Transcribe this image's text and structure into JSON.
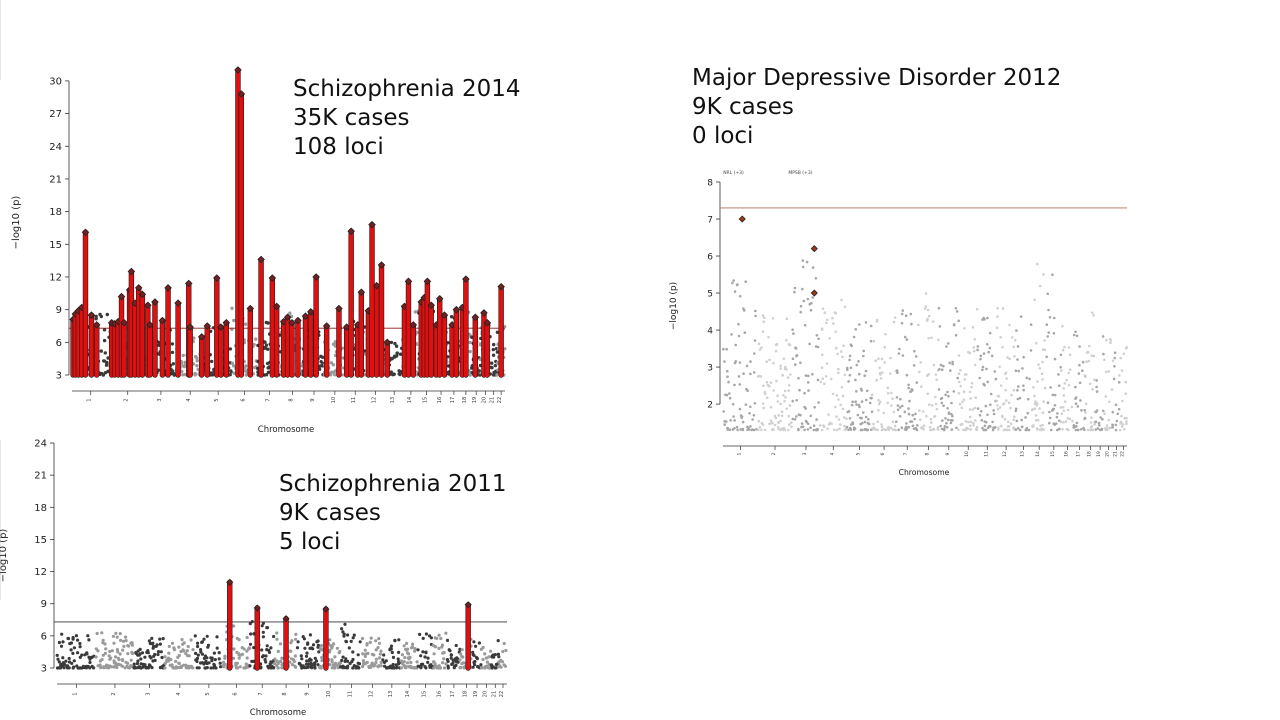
{
  "slide": {
    "captions": {
      "scz2014": [
        "Schizophrenia 2014",
        "35K cases",
        "108 loci"
      ],
      "mdd2012": [
        "Major Depressive Disorder 2012",
        "9K cases",
        "0 loci"
      ],
      "scz2011": [
        "Schizophrenia 2011",
        "9K cases",
        "5 loci"
      ]
    }
  },
  "chart_data": [
    {
      "id": "scz2014",
      "type": "scatter",
      "subtype": "manhattan",
      "title": "",
      "xlabel": "Chromosome",
      "ylabel": "−log10 (p)",
      "ylim": [
        3,
        31
      ],
      "yticks": [
        3,
        6,
        9,
        12,
        15,
        18,
        21,
        24,
        27,
        30
      ],
      "threshold": 7.3,
      "threshold_color": "#8b1a1a",
      "colors": {
        "dark": "#3a3a3a",
        "light": "#9a9a9a",
        "hit": "#e01010",
        "hit_marker": "#222222"
      },
      "grid": false,
      "chromosomes": [
        "1",
        "2",
        "3",
        "4",
        "5",
        "6",
        "7",
        "8",
        "9",
        "10",
        "11",
        "12",
        "13",
        "14",
        "15",
        "16",
        "17",
        "18",
        "19",
        "20",
        "21",
        "22"
      ],
      "chromosome_lengths": [
        249,
        243,
        198,
        191,
        181,
        171,
        159,
        146,
        141,
        136,
        135,
        134,
        115,
        107,
        102,
        90,
        81,
        78,
        59,
        63,
        48,
        51
      ],
      "chromosome_max": [
        8.6,
        7.5,
        7.4,
        6.5,
        7.4,
        9.2,
        9.0,
        8.7,
        7.4,
        7.4,
        8.0,
        8.5,
        6.0,
        9.3,
        9.6,
        8.4,
        8.6,
        9.2,
        6.5,
        8.0,
        7.1,
        7.5
      ],
      "hits": [
        {
          "chr": "1",
          "pos": 0.03,
          "y": 8.1
        },
        {
          "chr": "1",
          "pos": 0.09,
          "y": 8.6
        },
        {
          "chr": "1",
          "pos": 0.17,
          "y": 8.9
        },
        {
          "chr": "1",
          "pos": 0.26,
          "y": 9.2
        },
        {
          "chr": "1",
          "pos": 0.36,
          "y": 16.1
        },
        {
          "chr": "1",
          "pos": 0.52,
          "y": 8.5
        },
        {
          "chr": "1",
          "pos": 0.66,
          "y": 7.6
        },
        {
          "chr": "2",
          "pos": 0.06,
          "y": 7.8
        },
        {
          "chr": "2",
          "pos": 0.14,
          "y": 7.7
        },
        {
          "chr": "2",
          "pos": 0.24,
          "y": 7.9
        },
        {
          "chr": "2",
          "pos": 0.33,
          "y": 10.2
        },
        {
          "chr": "2",
          "pos": 0.4,
          "y": 7.8
        },
        {
          "chr": "2",
          "pos": 0.55,
          "y": 10.8
        },
        {
          "chr": "2",
          "pos": 0.6,
          "y": 12.5
        },
        {
          "chr": "2",
          "pos": 0.7,
          "y": 9.6
        },
        {
          "chr": "2",
          "pos": 0.8,
          "y": 11.0
        },
        {
          "chr": "2",
          "pos": 0.9,
          "y": 10.4
        },
        {
          "chr": "3",
          "pos": 0.06,
          "y": 9.4
        },
        {
          "chr": "3",
          "pos": 0.13,
          "y": 7.6
        },
        {
          "chr": "3",
          "pos": 0.3,
          "y": 9.7
        },
        {
          "chr": "3",
          "pos": 0.55,
          "y": 8.0
        },
        {
          "chr": "3",
          "pos": 0.74,
          "y": 11.0
        },
        {
          "chr": "4",
          "pos": 0.08,
          "y": 9.6
        },
        {
          "chr": "4",
          "pos": 0.45,
          "y": 11.4
        },
        {
          "chr": "4",
          "pos": 0.5,
          "y": 7.4
        },
        {
          "chr": "4",
          "pos": 0.9,
          "y": 6.5
        },
        {
          "chr": "5",
          "pos": 0.1,
          "y": 7.5
        },
        {
          "chr": "5",
          "pos": 0.45,
          "y": 11.9
        },
        {
          "chr": "5",
          "pos": 0.6,
          "y": 7.4
        },
        {
          "chr": "5",
          "pos": 0.8,
          "y": 7.8
        },
        {
          "chr": "6",
          "pos": 0.24,
          "y": 31.0
        },
        {
          "chr": "6",
          "pos": 0.37,
          "y": 28.8
        },
        {
          "chr": "6",
          "pos": 0.72,
          "y": 9.1
        },
        {
          "chr": "7",
          "pos": 0.15,
          "y": 13.6
        },
        {
          "chr": "7",
          "pos": 0.62,
          "y": 11.9
        },
        {
          "chr": "7",
          "pos": 0.8,
          "y": 9.3
        },
        {
          "chr": "8",
          "pos": 0.1,
          "y": 7.9
        },
        {
          "chr": "8",
          "pos": 0.28,
          "y": 8.3
        },
        {
          "chr": "8",
          "pos": 0.48,
          "y": 7.8
        },
        {
          "chr": "8",
          "pos": 0.75,
          "y": 8.0
        },
        {
          "chr": "9",
          "pos": 0.1,
          "y": 8.4
        },
        {
          "chr": "9",
          "pos": 0.35,
          "y": 8.8
        },
        {
          "chr": "9",
          "pos": 0.6,
          "y": 12.0
        },
        {
          "chr": "10",
          "pos": 0.1,
          "y": 7.5
        },
        {
          "chr": "10",
          "pos": 0.7,
          "y": 9.1
        },
        {
          "chr": "11",
          "pos": 0.08,
          "y": 7.4
        },
        {
          "chr": "11",
          "pos": 0.3,
          "y": 16.2
        },
        {
          "chr": "11",
          "pos": 0.62,
          "y": 7.6
        },
        {
          "chr": "11",
          "pos": 0.8,
          "y": 10.6
        },
        {
          "chr": "12",
          "pos": 0.15,
          "y": 8.9
        },
        {
          "chr": "12",
          "pos": 0.33,
          "y": 16.8
        },
        {
          "chr": "12",
          "pos": 0.56,
          "y": 11.2
        },
        {
          "chr": "12",
          "pos": 0.8,
          "y": 13.1
        },
        {
          "chr": "13",
          "pos": 0.1,
          "y": 6.0
        },
        {
          "chr": "14",
          "pos": 0.1,
          "y": 9.3
        },
        {
          "chr": "14",
          "pos": 0.35,
          "y": 11.6
        },
        {
          "chr": "14",
          "pos": 0.65,
          "y": 7.6
        },
        {
          "chr": "15",
          "pos": 0.15,
          "y": 9.7
        },
        {
          "chr": "15",
          "pos": 0.35,
          "y": 10.1
        },
        {
          "chr": "15",
          "pos": 0.55,
          "y": 11.6
        },
        {
          "chr": "15",
          "pos": 0.8,
          "y": 9.4
        },
        {
          "chr": "16",
          "pos": 0.15,
          "y": 7.6
        },
        {
          "chr": "16",
          "pos": 0.4,
          "y": 10.0
        },
        {
          "chr": "16",
          "pos": 0.75,
          "y": 8.5
        },
        {
          "chr": "17",
          "pos": 0.35,
          "y": 7.6
        },
        {
          "chr": "17",
          "pos": 0.7,
          "y": 9.0
        },
        {
          "chr": "18",
          "pos": 0.2,
          "y": 9.2
        },
        {
          "chr": "18",
          "pos": 0.5,
          "y": 11.8
        },
        {
          "chr": "19",
          "pos": 0.4,
          "y": 8.3
        },
        {
          "chr": "20",
          "pos": 0.35,
          "y": 8.7
        },
        {
          "chr": "20",
          "pos": 0.7,
          "y": 7.8
        },
        {
          "chr": "22",
          "pos": 0.5,
          "y": 11.1
        }
      ]
    },
    {
      "id": "mdd2012",
      "type": "scatter",
      "subtype": "manhattan",
      "title": "",
      "xlabel": "Chromosome",
      "ylabel": "−log10 (p)",
      "ylim": [
        1.3,
        8
      ],
      "yticks": [
        2,
        3,
        4,
        5,
        6,
        7,
        8
      ],
      "threshold": 7.3,
      "threshold_color": "#b56b5a",
      "colors": {
        "dark": "#a6a6a6",
        "light": "#d0d0d0",
        "hit": "#c0392b",
        "hit_marker": "#222222"
      },
      "grid": false,
      "chromosomes": [
        "1",
        "2",
        "3",
        "4",
        "5",
        "6",
        "7",
        "8",
        "9",
        "10",
        "11",
        "12",
        "13",
        "14",
        "15",
        "16",
        "17",
        "18",
        "19",
        "20",
        "21",
        "22"
      ],
      "chromosome_lengths": [
        249,
        243,
        198,
        191,
        181,
        171,
        159,
        146,
        141,
        136,
        135,
        134,
        115,
        107,
        102,
        90,
        81,
        78,
        59,
        63,
        48,
        51
      ],
      "chromosome_max": [
        5.9,
        4.9,
        5.9,
        4.9,
        4.6,
        4.4,
        4.6,
        5.0,
        5.0,
        4.6,
        4.4,
        4.6,
        4.4,
        6.0,
        5.8,
        4.2,
        4.4,
        4.6,
        3.9,
        3.9,
        3.7,
        3.6
      ],
      "annotations": [
        {
          "chr": "1",
          "pos": 0.3,
          "label": "NRL (+3)"
        },
        {
          "chr": "3",
          "pos": 0.3,
          "label": "MPSB (+3)"
        }
      ],
      "hits": [
        {
          "chr": "1",
          "pos": 0.55,
          "y": 7.0
        },
        {
          "chr": "3",
          "pos": 0.8,
          "y": 6.2
        },
        {
          "chr": "3",
          "pos": 0.8,
          "y": 5.0
        }
      ]
    },
    {
      "id": "scz2011",
      "type": "scatter",
      "subtype": "manhattan",
      "title": "",
      "xlabel": "Chromosome",
      "ylabel": "−log10 (p)",
      "ylim": [
        3,
        24
      ],
      "yticks": [
        3,
        6,
        9,
        12,
        15,
        18,
        21,
        24
      ],
      "threshold": 7.3,
      "threshold_color": "#333333",
      "colors": {
        "dark": "#3a3a3a",
        "light": "#9a9a9a",
        "hit": "#e01010",
        "hit_marker": "#222222"
      },
      "grid": false,
      "chromosomes": [
        "1",
        "2",
        "3",
        "4",
        "5",
        "6",
        "7",
        "8",
        "9",
        "10",
        "11",
        "12",
        "13",
        "14",
        "15",
        "16",
        "17",
        "18",
        "19",
        "20",
        "21",
        "22"
      ],
      "chromosome_lengths": [
        249,
        243,
        198,
        191,
        181,
        171,
        159,
        146,
        141,
        136,
        135,
        134,
        115,
        107,
        102,
        90,
        81,
        78,
        59,
        63,
        48,
        51
      ],
      "chromosome_max": [
        6.2,
        6.4,
        5.8,
        5.7,
        6.3,
        7.0,
        7.5,
        7.0,
        6.1,
        6.3,
        7.2,
        6.0,
        5.8,
        5.3,
        6.5,
        6.3,
        5.7,
        6.2,
        5.6,
        5.0,
        5.9,
        5.4
      ],
      "hits": [
        {
          "chr": "6",
          "pos": 0.25,
          "y": 11.0
        },
        {
          "chr": "7",
          "pos": 0.3,
          "y": 8.6
        },
        {
          "chr": "8",
          "pos": 0.5,
          "y": 7.6
        },
        {
          "chr": "10",
          "pos": 0.3,
          "y": 8.5
        },
        {
          "chr": "18",
          "pos": 0.65,
          "y": 8.9
        }
      ]
    }
  ]
}
